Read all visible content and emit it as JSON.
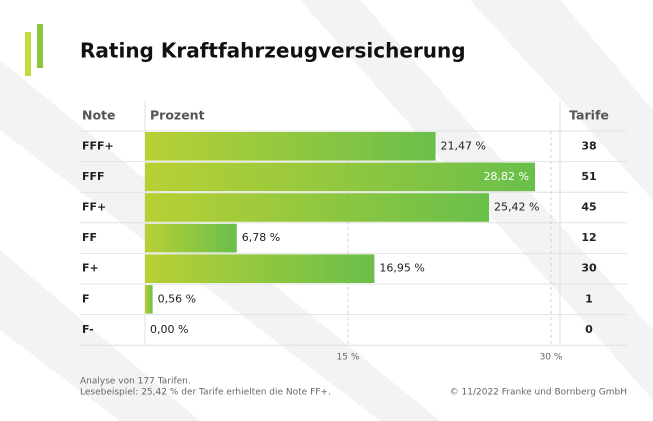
{
  "chart_data": {
    "type": "bar",
    "title": "Rating Kraftfahrzeugversicherung",
    "headers": [
      "Note",
      "Prozent",
      "Tarife"
    ],
    "categories": [
      "FFF+",
      "FFF",
      "FF+",
      "FF",
      "F+",
      "F",
      "F-"
    ],
    "values": [
      21.47,
      28.82,
      25.42,
      6.78,
      16.95,
      0.56,
      0.0
    ],
    "value_labels": [
      "21,47 %",
      "28,82 %",
      "25,42 %",
      "6,78 %",
      "16,95 %",
      "0,56 %",
      "0,00 %"
    ],
    "tarife": [
      38,
      51,
      45,
      12,
      30,
      1,
      0
    ],
    "color": [
      "#b8d034",
      "#6abf4b"
    ],
    "xlim": [
      0,
      30
    ],
    "xticks": [
      {
        "value": 15,
        "label": "15 %"
      },
      {
        "value": 30,
        "label": "30 %"
      }
    ],
    "grid": true,
    "notes": [
      "Analyse von 177 Tarifen.",
      "Lesebeispiel: 25,42 % der Tarife erhielten die Note FF+."
    ],
    "source": "© 11/2022 Franke und Bornberg GmbH"
  }
}
